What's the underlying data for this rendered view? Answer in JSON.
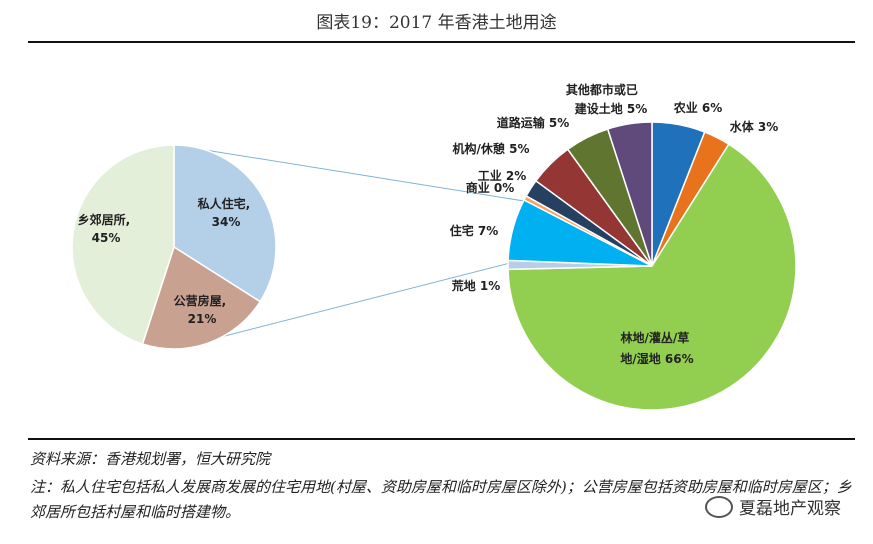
{
  "title": "图表19：2017 年香港土地用途",
  "chart_data": [
    {
      "type": "pie",
      "name": "housing_breakdown",
      "slices": [
        {
          "name": "私人住宅,",
          "value": 34,
          "label": "34%",
          "color": "#b4cfe8"
        },
        {
          "name": "公营房屋,",
          "value": 21,
          "label": "21%",
          "color": "#c9a191"
        },
        {
          "name": "乡郊居所,",
          "value": 45,
          "label": "45%",
          "color": "#e3efd9"
        }
      ]
    },
    {
      "type": "pie",
      "name": "land_use",
      "slices": [
        {
          "name": "农业",
          "value": 6,
          "label": "6%",
          "color": "#1f71bb"
        },
        {
          "name": "水体",
          "value": 3,
          "label": "3%",
          "color": "#e8731c"
        },
        {
          "name": "林地/灌丛/草地/湿地",
          "value": 66,
          "label": "66%",
          "color": "#92cf51"
        },
        {
          "name": "荒地",
          "value": 1,
          "label": "1%",
          "color": "#b7cfe6"
        },
        {
          "name": "住宅",
          "value": 7,
          "label": "7%",
          "color": "#00b0f0"
        },
        {
          "name": "商业",
          "value": 0.5,
          "label": "0%",
          "color": "#f4a460"
        },
        {
          "name": "工业",
          "value": 2,
          "label": "2%",
          "color": "#254061"
        },
        {
          "name": "机构/休憩",
          "value": 5,
          "label": "5%",
          "color": "#943634"
        },
        {
          "name": "道路运输",
          "value": 5,
          "label": "5%",
          "color": "#5f7530"
        },
        {
          "name": "其他都市或已建设土地",
          "value": 5,
          "label": "5%",
          "color": "#604a7b"
        }
      ]
    }
  ],
  "labels": {
    "private_housing": [
      "私人住宅,",
      "34%"
    ],
    "public_housing": [
      "公营房屋,",
      "21%"
    ],
    "rural": [
      "乡郊居所,",
      "45%"
    ],
    "agriculture": "农业 6%",
    "water": "水体 3%",
    "woodland": [
      "林地/灌丛/草",
      "地/湿地 66%"
    ],
    "barren": "荒地 1%",
    "residential": "住宅 7%",
    "commercial": "商业 0%",
    "industrial": "工业 2%",
    "institutional": "机构/休憩 5%",
    "roads": "道路运输 5%",
    "other": [
      "其他都市或已",
      "建设土地 5%"
    ]
  },
  "source": "资料来源：香港规划署，恒大研究院",
  "note": "注：私人住宅包括私人发展商发展的住宅用地(村屋、资助房屋和临时房屋区除外)；公营房屋包括资助房屋和临时房屋区；乡郊居所包括村屋和临时搭建物。",
  "watermark": "夏磊地产观察",
  "colors": {
    "connector": "#7fb2d9",
    "rule": "#111111"
  }
}
